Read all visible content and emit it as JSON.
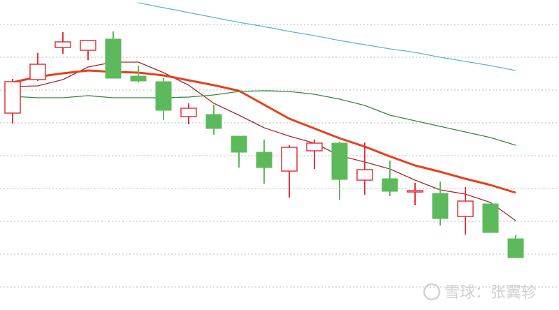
{
  "chart_data": {
    "type": "candlestick",
    "ylim": [
      0,
      444
    ],
    "yticks": [
      33,
      80,
      127,
      174,
      221,
      268,
      315,
      362,
      409
    ],
    "grid": true,
    "show_tick_labels": false,
    "up_color": "#e3343c",
    "down_color": "#5cba5c",
    "open": [
      282,
      330,
      376,
      372,
      388,
      335,
      327,
      277,
      280,
      249,
      226,
      199,
      228,
      239,
      186,
      188,
      169,
      167,
      134,
      152,
      102
    ],
    "high": [
      331,
      368,
      398,
      386,
      399,
      350,
      332,
      296,
      294,
      249,
      244,
      236,
      244,
      241,
      240,
      214,
      182,
      184,
      176,
      152,
      107
    ],
    "low": [
      267,
      328,
      367,
      358,
      332,
      326,
      272,
      266,
      251,
      204,
      181,
      161,
      202,
      158,
      165,
      163,
      150,
      121,
      108,
      111,
      75
    ],
    "close": [
      327,
      352,
      384,
      386,
      332,
      328,
      286,
      289,
      260,
      226,
      204,
      233,
      239,
      187,
      201,
      170,
      171,
      131,
      156,
      111,
      75
    ],
    "lines": [
      {
        "color": "#a8262a",
        "width": 1.3,
        "values": [
          320,
          321,
          330,
          348,
          355,
          355,
          340,
          322,
          296,
          279,
          261,
          249,
          239,
          221,
          212,
          202,
          186,
          172,
          166,
          154,
          128
        ]
      },
      {
        "color": "#e8401c",
        "width": 3,
        "values": [
          326,
          334,
          339,
          343,
          341,
          340,
          336,
          329,
          322,
          314,
          294,
          274,
          260,
          246,
          234,
          220,
          207,
          198,
          188,
          179,
          168
        ]
      },
      {
        "color": "#2e8b3a",
        "width": 1.3,
        "values": [
          306,
          304,
          304,
          307,
          304,
          304,
          304,
          305,
          308,
          313,
          314,
          313,
          309,
          302,
          293,
          279,
          271,
          263,
          255,
          247,
          236
        ]
      },
      {
        "color": "#5ab4d6",
        "width": 1.3,
        "values": [
          null,
          null,
          null,
          null,
          null,
          440,
          433,
          426,
          419,
          412,
          406,
          399,
          393,
          386,
          380,
          374,
          369,
          362,
          356,
          350,
          343
        ]
      }
    ],
    "watermark": "雪球：张翼轸"
  }
}
